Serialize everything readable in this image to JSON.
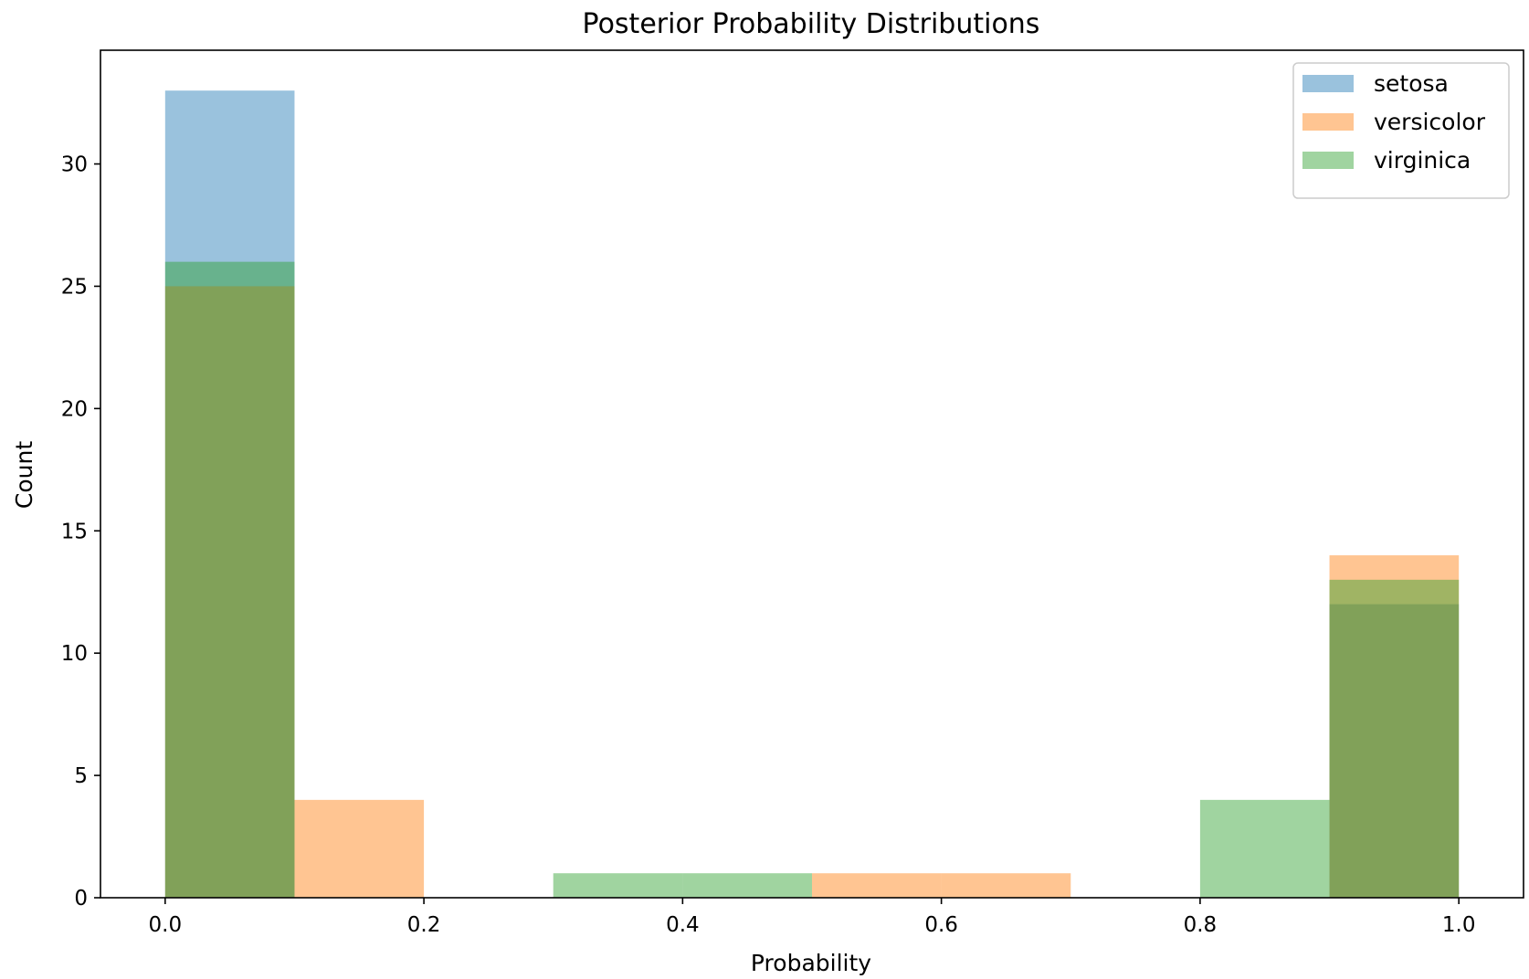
{
  "chart_data": {
    "type": "bar",
    "title": "Posterior Probability Distributions",
    "xlabel": "Probability",
    "ylabel": "Count",
    "xlim": [
      -0.05,
      1.05
    ],
    "ylim": [
      0,
      34.65
    ],
    "xticks": [
      0.0,
      0.2,
      0.4,
      0.6,
      0.8,
      1.0
    ],
    "xtick_labels": [
      "0.0",
      "0.2",
      "0.4",
      "0.6",
      "0.8",
      "1.0"
    ],
    "yticks": [
      0,
      5,
      10,
      15,
      20,
      25,
      30
    ],
    "ytick_labels": [
      "0",
      "5",
      "10",
      "15",
      "20",
      "25",
      "30"
    ],
    "grid": false,
    "legend_position": "top-right",
    "bin_edges": [
      0.0,
      0.1,
      0.2,
      0.3,
      0.4,
      0.5,
      0.6,
      0.7,
      0.8,
      0.9,
      1.0
    ],
    "series": [
      {
        "name": "setosa",
        "color": "#1f77b4",
        "alpha": 0.45,
        "counts": [
          33,
          0,
          0,
          0,
          0,
          0,
          0,
          0,
          0,
          12
        ]
      },
      {
        "name": "versicolor",
        "color": "#ff7f0e",
        "alpha": 0.45,
        "counts": [
          25,
          4,
          0,
          0,
          0,
          1,
          1,
          0,
          0,
          14
        ]
      },
      {
        "name": "virginica",
        "color": "#2ca02c",
        "alpha": 0.45,
        "counts": [
          26,
          0,
          0,
          1,
          1,
          0,
          0,
          0,
          4,
          13
        ]
      }
    ]
  }
}
